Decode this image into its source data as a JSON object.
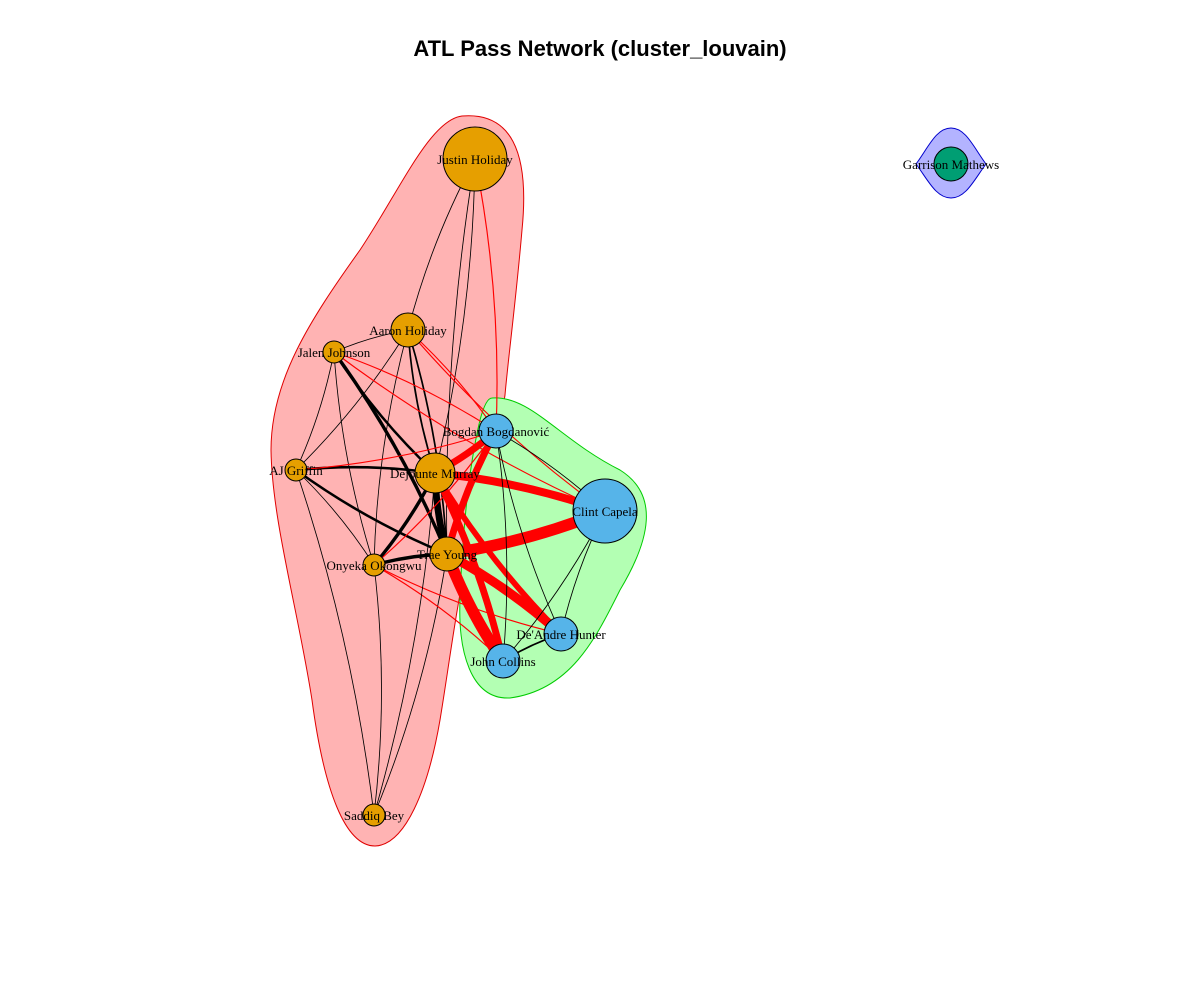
{
  "title": "ATL Pass Network (cluster_louvain)",
  "colors": {
    "orange_node": "#E69F00",
    "blue_node": "#56B4E9",
    "green_node": "#009E73",
    "cluster_red": "#FFB3B3",
    "cluster_green": "#B3FFB3",
    "cluster_blue": "#B3B3FF",
    "inter_edge": "#FF0000",
    "intra_edge": "#000000"
  },
  "nodes": [
    {
      "id": "justin",
      "label": "Justin Holiday",
      "community": 1,
      "size": "large"
    },
    {
      "id": "aaron",
      "label": "Aaron Holiday",
      "community": 1,
      "size": "small"
    },
    {
      "id": "jalen",
      "label": "Jalen Johnson",
      "community": 1,
      "size": "tiny"
    },
    {
      "id": "aj",
      "label": "AJ Griffin",
      "community": 1,
      "size": "tiny"
    },
    {
      "id": "dejounte",
      "label": "Dejounte Murray",
      "community": 1,
      "size": "medium"
    },
    {
      "id": "trae",
      "label": "Trae Young",
      "community": 1,
      "size": "small"
    },
    {
      "id": "onyeka",
      "label": "Onyeka Okongwu",
      "community": 1,
      "size": "tiny"
    },
    {
      "id": "saddiq",
      "label": "Saddiq Bey",
      "community": 1,
      "size": "tiny"
    },
    {
      "id": "bogdan",
      "label": "Bogdan Bogdanović",
      "community": 2,
      "size": "small"
    },
    {
      "id": "clint",
      "label": "Clint Capela",
      "community": 2,
      "size": "large"
    },
    {
      "id": "deandre",
      "label": "De'Andre Hunter",
      "community": 2,
      "size": "small"
    },
    {
      "id": "john",
      "label": "John Collins",
      "community": 2,
      "size": "small"
    },
    {
      "id": "garrison",
      "label": "Garrison Mathews",
      "community": 3,
      "size": "small"
    }
  ],
  "edges": [
    {
      "source": "justin",
      "target": "aaron",
      "weight": 1
    },
    {
      "source": "justin",
      "target": "dejounte",
      "weight": 1
    },
    {
      "source": "justin",
      "target": "trae",
      "weight": 1
    },
    {
      "source": "justin",
      "target": "bogdan",
      "weight": 1
    },
    {
      "source": "aaron",
      "target": "jalen",
      "weight": 1
    },
    {
      "source": "aaron",
      "target": "aj",
      "weight": 1
    },
    {
      "source": "aaron",
      "target": "dejounte",
      "weight": 2
    },
    {
      "source": "aaron",
      "target": "trae",
      "weight": 2
    },
    {
      "source": "aaron",
      "target": "onyeka",
      "weight": 1
    },
    {
      "source": "aaron",
      "target": "bogdan",
      "weight": 1
    },
    {
      "source": "aaron",
      "target": "clint",
      "weight": 1
    },
    {
      "source": "jalen",
      "target": "aj",
      "weight": 1
    },
    {
      "source": "jalen",
      "target": "dejounte",
      "weight": 3
    },
    {
      "source": "jalen",
      "target": "trae",
      "weight": 4
    },
    {
      "source": "jalen",
      "target": "onyeka",
      "weight": 1
    },
    {
      "source": "jalen",
      "target": "bogdan",
      "weight": 1
    },
    {
      "source": "jalen",
      "target": "clint",
      "weight": 1
    },
    {
      "source": "aj",
      "target": "dejounte",
      "weight": 3
    },
    {
      "source": "aj",
      "target": "trae",
      "weight": 3
    },
    {
      "source": "aj",
      "target": "onyeka",
      "weight": 1
    },
    {
      "source": "aj",
      "target": "bogdan",
      "weight": 1
    },
    {
      "source": "aj",
      "target": "saddiq",
      "weight": 1
    },
    {
      "source": "dejounte",
      "target": "trae",
      "weight": 8
    },
    {
      "source": "dejounte",
      "target": "onyeka",
      "weight": 4
    },
    {
      "source": "dejounte",
      "target": "bogdan",
      "weight": 6
    },
    {
      "source": "dejounte",
      "target": "clint",
      "weight": 7
    },
    {
      "source": "dejounte",
      "target": "deandre",
      "weight": 5
    },
    {
      "source": "dejounte",
      "target": "john",
      "weight": 6
    },
    {
      "source": "trae",
      "target": "onyeka",
      "weight": 4
    },
    {
      "source": "trae",
      "target": "bogdan",
      "weight": 6
    },
    {
      "source": "trae",
      "target": "clint",
      "weight": 10
    },
    {
      "source": "trae",
      "target": "deandre",
      "weight": 8
    },
    {
      "source": "trae",
      "target": "john",
      "weight": 10
    },
    {
      "source": "trae",
      "target": "saddiq",
      "weight": 1
    },
    {
      "source": "onyeka",
      "target": "bogdan",
      "weight": 1
    },
    {
      "source": "onyeka",
      "target": "john",
      "weight": 1
    },
    {
      "source": "onyeka",
      "target": "deandre",
      "weight": 1
    },
    {
      "source": "onyeka",
      "target": "saddiq",
      "weight": 1
    },
    {
      "source": "saddiq",
      "target": "dejounte",
      "weight": 1
    },
    {
      "source": "bogdan",
      "target": "clint",
      "weight": 1
    },
    {
      "source": "bogdan",
      "target": "deandre",
      "weight": 1
    },
    {
      "source": "bogdan",
      "target": "john",
      "weight": 1
    },
    {
      "source": "clint",
      "target": "deandre",
      "weight": 1
    },
    {
      "source": "clint",
      "target": "john",
      "weight": 1
    },
    {
      "source": "deandre",
      "target": "john",
      "weight": 2
    }
  ]
}
